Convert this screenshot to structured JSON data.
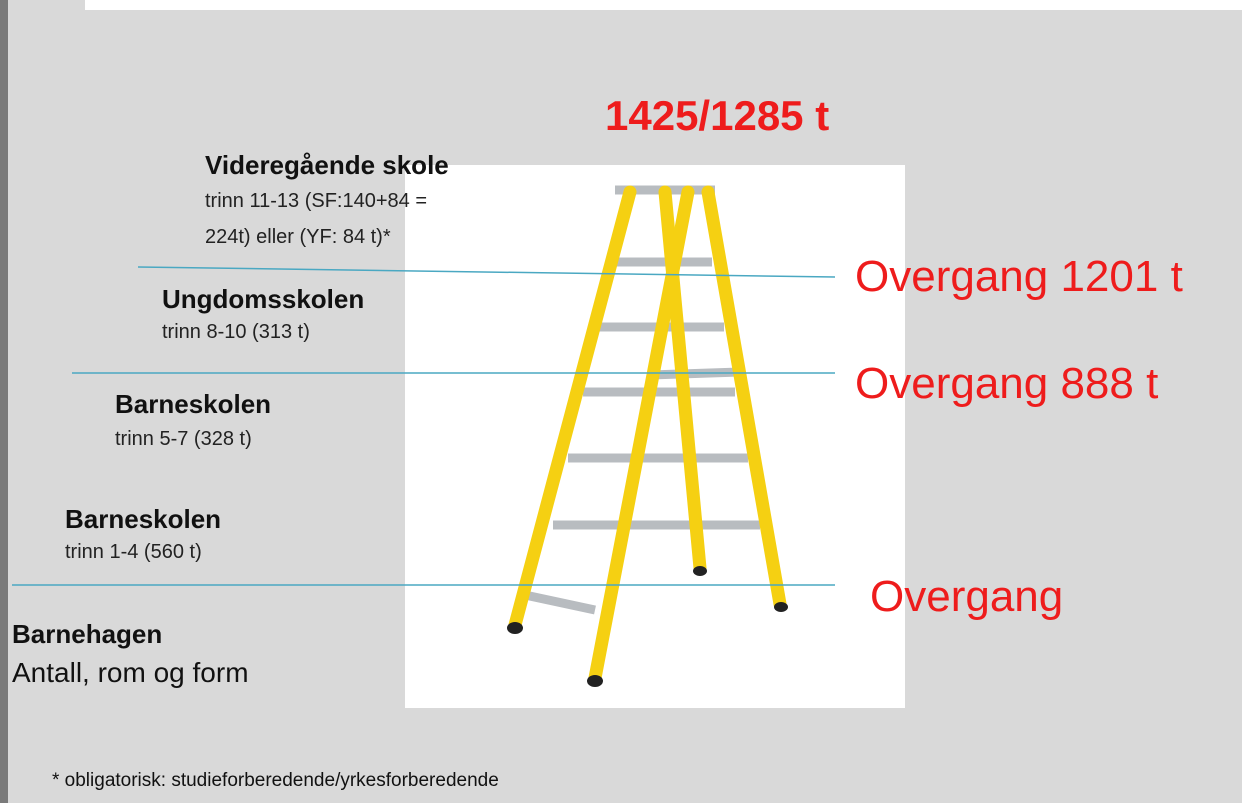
{
  "title": "1425/1285 t",
  "levels": [
    {
      "heading": "Videregående skole",
      "detail_lines": [
        "trinn 11-13 (SF:140+84 =",
        "224t) eller (YF: 84 t)*"
      ]
    },
    {
      "heading": "Ungdomsskolen",
      "detail_lines": [
        "trinn 8-10 (313 t)"
      ]
    },
    {
      "heading": "Barneskolen",
      "detail_lines": [
        "trinn 5-7 (328 t)"
      ]
    },
    {
      "heading": "Barneskolen",
      "detail_lines": [
        "trinn 1-4 (560 t)"
      ]
    },
    {
      "heading": "Barnehagen",
      "detail_lines": [
        "Antall, rom og form"
      ]
    }
  ],
  "transitions": [
    "Overgang 1201 t",
    "Overgang 888 t",
    "Overgang"
  ],
  "footnote": "* obligatorisk: studieforberedende/yrkesforberedende"
}
